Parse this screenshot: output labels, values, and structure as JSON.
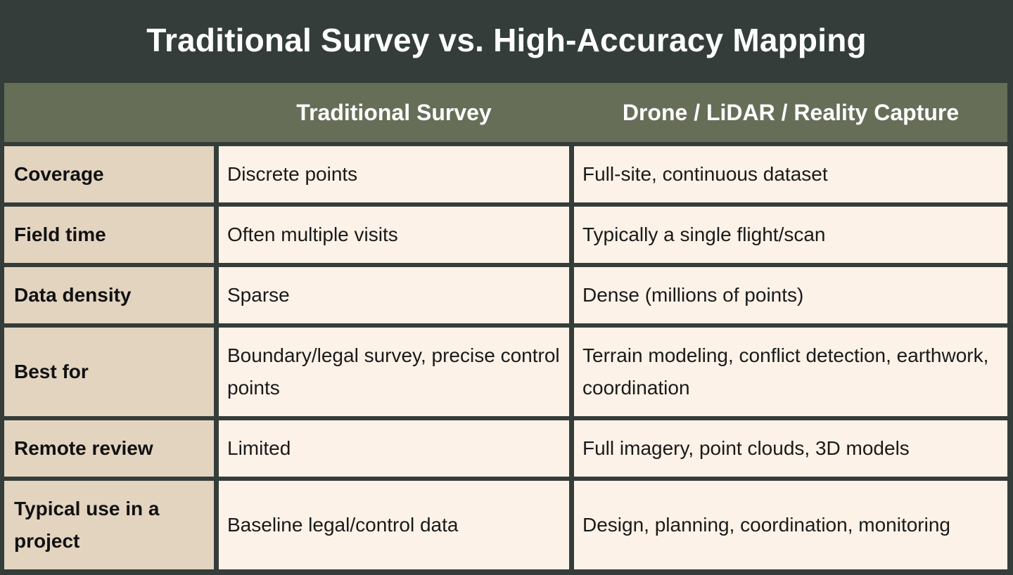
{
  "title": "Traditional Survey vs. High-Accuracy Mapping",
  "table": {
    "headers": [
      "",
      "Traditional Survey",
      "Drone / LiDAR / Reality Capture"
    ],
    "rows": [
      {
        "label": "Coverage",
        "traditional": "Discrete points",
        "reality_capture": "Full-site, continuous dataset"
      },
      {
        "label": "Field time",
        "traditional": "Often multiple visits",
        "reality_capture": "Typically a single flight/scan"
      },
      {
        "label": "Data density",
        "traditional": "Sparse",
        "reality_capture": "Dense (millions of points)"
      },
      {
        "label": "Best for",
        "traditional": "Boundary/legal survey, precise control points",
        "reality_capture": "Terrain modeling, conflict detection, earthwork, coordination"
      },
      {
        "label": "Remote review",
        "traditional": "Limited",
        "reality_capture": "Full imagery, point clouds, 3D models"
      },
      {
        "label": "Typical use in a project",
        "traditional": "Baseline legal/control data",
        "reality_capture": "Design, planning, coordination, monitoring"
      }
    ]
  },
  "colors": {
    "background": "#343d39",
    "header": "#666e58",
    "label_cells": "#e3d4c0",
    "value_cells": "#fcf2e8"
  }
}
